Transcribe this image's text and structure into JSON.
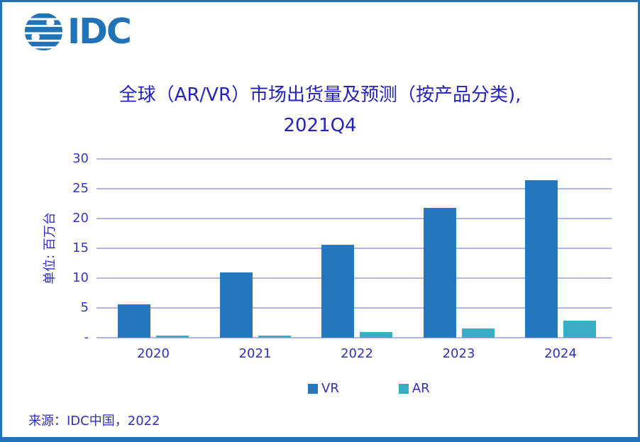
{
  "logo": {
    "text": "IDC"
  },
  "title": {
    "line1": "全球（AR/VR）市场出货量及预测（按产品分类),",
    "line2": "2021Q4"
  },
  "source": "来源：IDC中国，2022",
  "colors": {
    "brand": "#2273B6",
    "vr": "#2578BD",
    "ar": "#39ADC3",
    "grid": "#B4B4E8",
    "text": "#2F2FBE"
  },
  "chart_data": {
    "type": "bar",
    "title": "全球（AR/VR）市场出货量及预测（按产品分类), 2021Q4",
    "categories": [
      "2020",
      "2021",
      "2022",
      "2023",
      "2024"
    ],
    "series": [
      {
        "name": "VR",
        "color": "#2578BD",
        "values": [
          5.6,
          10.9,
          15.6,
          21.8,
          26.4
        ]
      },
      {
        "name": "AR",
        "color": "#39ADC3",
        "values": [
          0.3,
          0.4,
          0.9,
          1.5,
          2.9
        ]
      }
    ],
    "xlabel": "",
    "ylabel": "单位: 百万台",
    "ylim": [
      0,
      30
    ],
    "ytick_values": [
      0,
      5,
      10,
      15,
      20,
      25,
      30
    ],
    "ytick_labels": [
      "-",
      "5",
      "10",
      "15",
      "20",
      "25",
      "30"
    ],
    "grid": true,
    "legend_position": "bottom"
  }
}
